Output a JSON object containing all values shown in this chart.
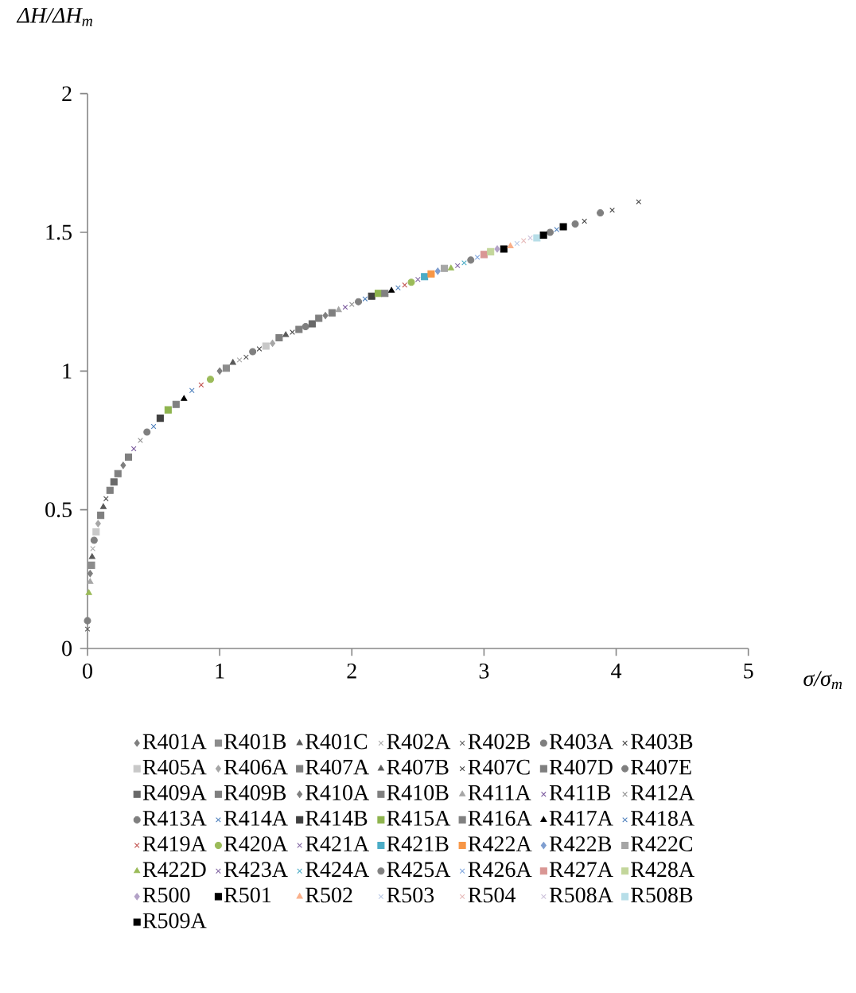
{
  "chart_data": {
    "type": "scatter",
    "xlabel": "σ/σ$_{m}$",
    "ylabel": "ΔH/ΔH$_{m}$",
    "xlim": [
      0,
      5
    ],
    "ylim": [
      0,
      2
    ],
    "xticks": [
      0,
      1,
      2,
      3,
      4,
      5
    ],
    "yticks": [
      0,
      0.5,
      1,
      1.5,
      2
    ],
    "legend": "bottom",
    "series": [
      {
        "name": "R401A",
        "color": "#7f7f7f",
        "marker": "diamond",
        "x": [
          0.02,
          1.0
        ],
        "values": [
          0.27,
          1.0
        ]
      },
      {
        "name": "R401B",
        "color": "#8c8c8c",
        "marker": "square",
        "x": [
          0.03,
          1.05
        ],
        "values": [
          0.3,
          1.01
        ]
      },
      {
        "name": "R401C",
        "color": "#595959",
        "marker": "triangle",
        "x": [
          0.035,
          1.1
        ],
        "values": [
          0.33,
          1.03
        ]
      },
      {
        "name": "R402A",
        "color": "#a6a6a6",
        "marker": "cross",
        "x": [
          0.04,
          1.15
        ],
        "values": [
          0.36,
          1.04
        ]
      },
      {
        "name": "R402B",
        "color": "#595959",
        "marker": "cross",
        "x": [
          0,
          1.2
        ],
        "values": [
          0.07,
          1.05
        ]
      },
      {
        "name": "R403A",
        "color": "#7f7f7f",
        "marker": "circle",
        "x": [
          0.05,
          1.25,
          3.5,
          3.69,
          3.88
        ],
        "values": [
          0.39,
          1.07,
          1.5,
          1.53,
          1.57
        ]
      },
      {
        "name": "R403B",
        "color": "#404040",
        "marker": "cross",
        "x": [
          1.3,
          3.76,
          3.97,
          4.17
        ],
        "values": [
          1.08,
          1.54,
          1.58,
          1.61
        ]
      },
      {
        "name": "R405A",
        "color": "#c8c8c8",
        "marker": "square",
        "x": [
          0.065,
          1.35
        ],
        "values": [
          0.42,
          1.09
        ]
      },
      {
        "name": "R406A",
        "color": "#a6a6a6",
        "marker": "diamond",
        "x": [
          0.08,
          1.4
        ],
        "values": [
          0.45,
          1.1
        ]
      },
      {
        "name": "R407A",
        "color": "#7f7f7f",
        "marker": "square",
        "x": [
          0.1,
          1.45
        ],
        "values": [
          0.48,
          1.12
        ]
      },
      {
        "name": "R407B",
        "color": "#595959",
        "marker": "triangle",
        "x": [
          0.12,
          1.5
        ],
        "values": [
          0.51,
          1.13
        ]
      },
      {
        "name": "R407C",
        "color": "#404040",
        "marker": "cross",
        "x": [
          0.14,
          1.55
        ],
        "values": [
          0.54,
          1.14
        ]
      },
      {
        "name": "R407D",
        "color": "#7f7f7f",
        "marker": "square",
        "x": [
          0.17,
          1.6
        ],
        "values": [
          0.57,
          1.15
        ]
      },
      {
        "name": "R407E",
        "color": "#7f7f7f",
        "marker": "circle",
        "x": [
          0,
          1.65
        ],
        "values": [
          0.1,
          1.16
        ]
      },
      {
        "name": "R409A",
        "color": "#696969",
        "marker": "square",
        "x": [
          0.2,
          1.7
        ],
        "values": [
          0.6,
          1.17
        ]
      },
      {
        "name": "R409B",
        "color": "#7f7f7f",
        "marker": "square",
        "x": [
          0.23,
          1.75
        ],
        "values": [
          0.63,
          1.19
        ]
      },
      {
        "name": "R410A",
        "color": "#7f7f7f",
        "marker": "diamond",
        "x": [
          0.27,
          1.8
        ],
        "values": [
          0.66,
          1.2
        ]
      },
      {
        "name": "R410B",
        "color": "#7f7f7f",
        "marker": "square",
        "x": [
          0.31,
          1.85
        ],
        "values": [
          0.69,
          1.21
        ]
      },
      {
        "name": "R411A",
        "color": "#a6a6a6",
        "marker": "triangle",
        "x": [
          0.02,
          1.9
        ],
        "values": [
          0.24,
          1.22
        ]
      },
      {
        "name": "R411B",
        "color": "#76549a",
        "marker": "cross",
        "x": [
          0.35,
          1.95
        ],
        "values": [
          0.72,
          1.23
        ]
      },
      {
        "name": "R412A",
        "color": "#8c8c8c",
        "marker": "cross",
        "x": [
          0.4,
          2.0
        ],
        "values": [
          0.75,
          1.24
        ]
      },
      {
        "name": "R413A",
        "color": "#7f7f7f",
        "marker": "circle",
        "x": [
          0.45,
          2.05
        ],
        "values": [
          0.78,
          1.25
        ]
      },
      {
        "name": "R414A",
        "color": "#4f81bd",
        "marker": "cross",
        "x": [
          0.5,
          2.1,
          3.55
        ],
        "values": [
          0.8,
          1.26,
          1.51
        ]
      },
      {
        "name": "R414B",
        "color": "#404040",
        "marker": "square",
        "x": [
          0.55,
          2.15
        ],
        "values": [
          0.83,
          1.27
        ]
      },
      {
        "name": "R415A",
        "color": "#8eb44e",
        "marker": "square",
        "x": [
          0.61,
          2.2
        ],
        "values": [
          0.86,
          1.28
        ]
      },
      {
        "name": "R416A",
        "color": "#808080",
        "marker": "square",
        "x": [
          0.67,
          2.25
        ],
        "values": [
          0.88,
          1.28
        ]
      },
      {
        "name": "R417A",
        "color": "#000000",
        "marker": "triangle",
        "x": [
          0.73,
          2.3
        ],
        "values": [
          0.9,
          1.29
        ]
      },
      {
        "name": "R418A",
        "color": "#4f81bd",
        "marker": "cross",
        "x": [
          0.79,
          2.35
        ],
        "values": [
          0.93,
          1.3
        ]
      },
      {
        "name": "R419A",
        "color": "#c0504d",
        "marker": "cross",
        "x": [
          0.86,
          2.4
        ],
        "values": [
          0.95,
          1.31
        ]
      },
      {
        "name": "R420A",
        "color": "#9bbb59",
        "marker": "circle",
        "x": [
          0.93,
          2.45
        ],
        "values": [
          0.97,
          1.32
        ]
      },
      {
        "name": "R421A",
        "color": "#8064a2",
        "marker": "cross",
        "x": [
          2.5
        ],
        "values": [
          1.33
        ]
      },
      {
        "name": "R421B",
        "color": "#4bacc6",
        "marker": "square",
        "x": [
          2.55
        ],
        "values": [
          1.34
        ]
      },
      {
        "name": "R422A",
        "color": "#f79646",
        "marker": "square",
        "x": [
          2.6
        ],
        "values": [
          1.35
        ]
      },
      {
        "name": "R422B",
        "color": "#7f9ed0",
        "marker": "diamond",
        "x": [
          2.65
        ],
        "values": [
          1.36
        ]
      },
      {
        "name": "R422C",
        "color": "#a6a6a6",
        "marker": "square",
        "x": [
          2.7
        ],
        "values": [
          1.37
        ]
      },
      {
        "name": "R422D",
        "color": "#9bbb59",
        "marker": "triangle",
        "x": [
          0.01,
          2.75
        ],
        "values": [
          0.2,
          1.37
        ]
      },
      {
        "name": "R423A",
        "color": "#8064a2",
        "marker": "cross",
        "x": [
          2.8
        ],
        "values": [
          1.38
        ]
      },
      {
        "name": "R424A",
        "color": "#4bacc6",
        "marker": "cross",
        "x": [
          2.85
        ],
        "values": [
          1.39
        ]
      },
      {
        "name": "R425A",
        "color": "#808080",
        "marker": "circle",
        "x": [
          2.9
        ],
        "values": [
          1.4
        ]
      },
      {
        "name": "R426A",
        "color": "#7ea6e0",
        "marker": "cross",
        "x": [
          2.95
        ],
        "values": [
          1.41
        ]
      },
      {
        "name": "R427A",
        "color": "#d99694",
        "marker": "square",
        "x": [
          3.0
        ],
        "values": [
          1.42
        ]
      },
      {
        "name": "R428A",
        "color": "#c3d69b",
        "marker": "square",
        "x": [
          3.05
        ],
        "values": [
          1.43
        ]
      },
      {
        "name": "R500",
        "color": "#b3a2c7",
        "marker": "diamond",
        "x": [
          3.1
        ],
        "values": [
          1.44
        ]
      },
      {
        "name": "R501",
        "color": "#000000",
        "marker": "square",
        "x": [
          3.15,
          3.6
        ],
        "values": [
          1.44,
          1.52
        ]
      },
      {
        "name": "R502",
        "color": "#fab08a",
        "marker": "triangle",
        "x": [
          3.2
        ],
        "values": [
          1.45
        ]
      },
      {
        "name": "R503",
        "color": "#b9c9e6",
        "marker": "cross",
        "x": [
          3.25
        ],
        "values": [
          1.46
        ]
      },
      {
        "name": "R504",
        "color": "#e6b9b8",
        "marker": "cross",
        "x": [
          3.3
        ],
        "values": [
          1.47
        ]
      },
      {
        "name": "R508A",
        "color": "#ccc1da",
        "marker": "cross",
        "x": [
          3.35
        ],
        "values": [
          1.48
        ]
      },
      {
        "name": "R508B",
        "color": "#b7dee8",
        "marker": "square",
        "x": [
          3.4
        ],
        "values": [
          1.48
        ]
      },
      {
        "name": "R509A",
        "color": "#000000",
        "marker": "square",
        "x": [
          3.45
        ],
        "values": [
          1.49
        ]
      }
    ]
  }
}
